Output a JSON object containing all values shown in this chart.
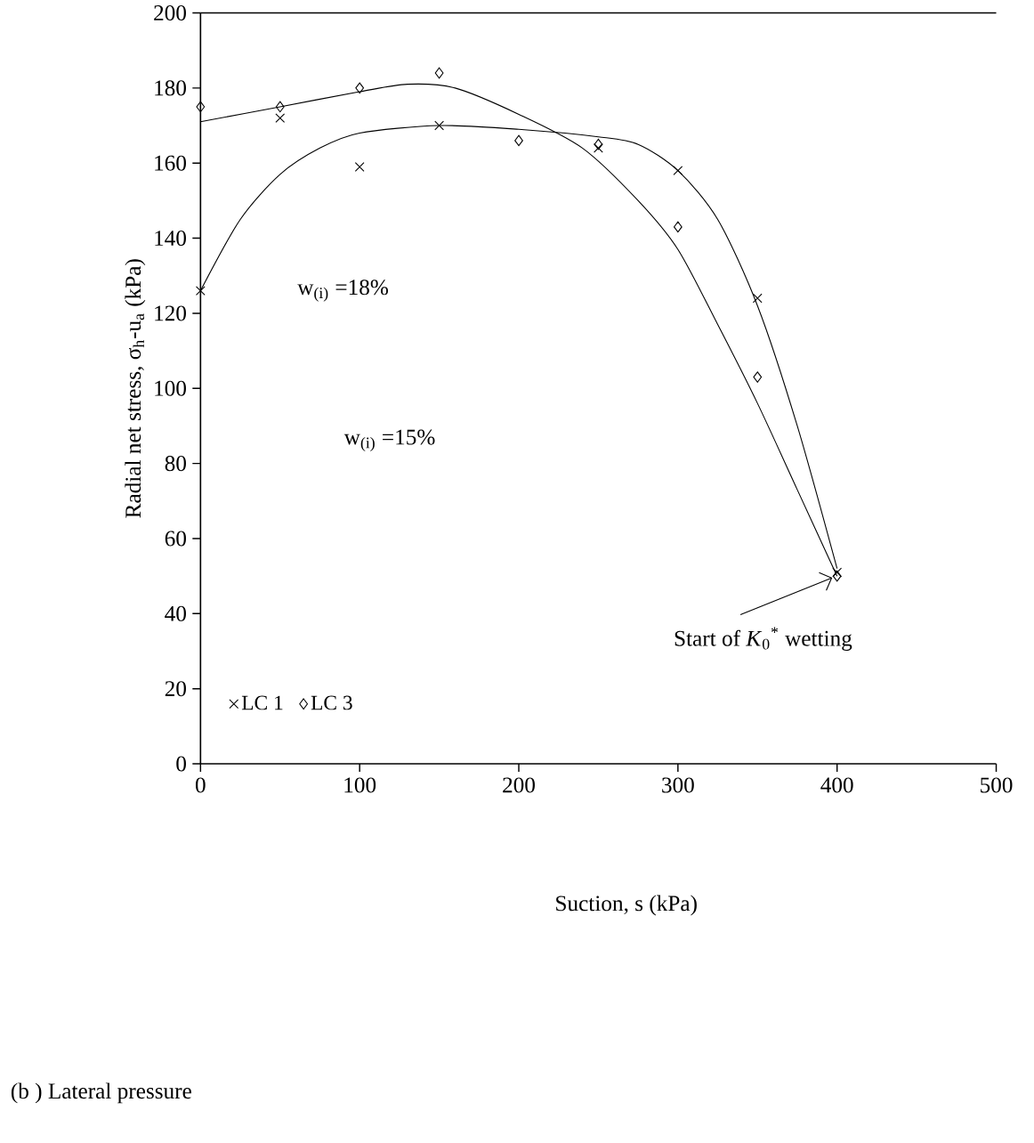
{
  "chart_data": {
    "type": "scatter",
    "xlabel": "Suction, s (kPa)",
    "ylabel": "Radial net stress, σ$_{h}$-u$_{a}$ (kPa)",
    "xlim": [
      0,
      500
    ],
    "xticks": [
      0,
      100,
      200,
      300,
      400,
      500
    ],
    "ylim": [
      0,
      200
    ],
    "yticks": [
      0,
      20,
      40,
      60,
      80,
      100,
      120,
      140,
      160,
      180,
      200
    ],
    "grid": false,
    "legend": "bottom left",
    "series": [
      {
        "name": "LC 1",
        "marker": "cross",
        "color": "#000000",
        "x": [
          0,
          50,
          100,
          150,
          250,
          300,
          350,
          400
        ],
        "values": [
          126,
          172,
          159,
          170,
          164,
          158,
          124,
          51
        ]
      },
      {
        "name": "LC 3",
        "marker": "diamond",
        "color": "#000000",
        "x": [
          0,
          50,
          100,
          150,
          200,
          250,
          300,
          350,
          400
        ],
        "values": [
          175,
          175,
          180,
          184,
          166,
          165,
          143,
          103,
          50
        ]
      },
      {
        "type": "line",
        "marker": "none",
        "color": "#000000",
        "x": [
          0,
          25,
          50,
          75,
          100,
          150,
          200,
          250,
          275,
          300,
          325,
          350,
          375,
          400
        ],
        "values": [
          126,
          145,
          157,
          164,
          168,
          170,
          169,
          167,
          165,
          158,
          145,
          122,
          90,
          52
        ]
      },
      {
        "type": "line",
        "marker": "none",
        "color": "#000000",
        "x": [
          0,
          50,
          100,
          130,
          160,
          200,
          240,
          275,
          300,
          325,
          350,
          375,
          400
        ],
        "values": [
          171,
          175,
          179,
          181,
          180,
          173,
          164,
          150,
          137,
          117,
          96,
          73,
          50
        ]
      }
    ],
    "annotations": [
      "w$_{(i)}$ =18%",
      "w$_{(i)}$ =15%",
      {
        "text": "Start of *K*$_{0}$$^{*}$ wetting",
        "x": 400,
        "y": 50
      },
      "(b ) Lateral pressure"
    ]
  }
}
